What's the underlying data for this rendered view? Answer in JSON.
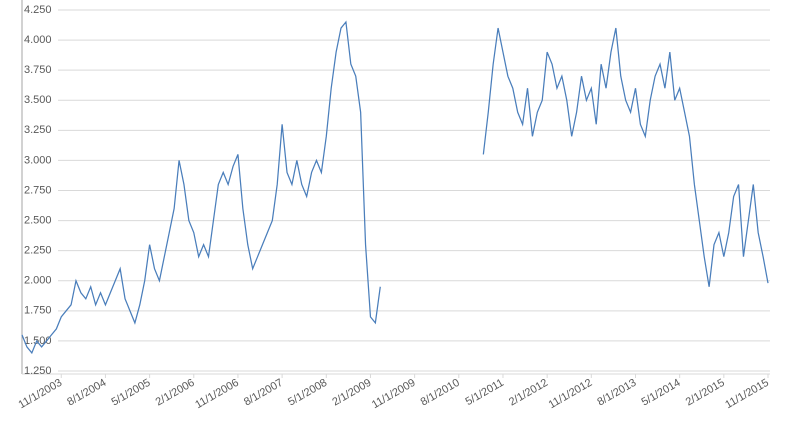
{
  "chart_data": {
    "type": "line",
    "x": [
      "3/1/2003",
      "4/1/2003",
      "5/1/2003",
      "6/1/2003",
      "7/1/2003",
      "8/1/2003",
      "9/1/2003",
      "10/1/2003",
      "11/1/2003",
      "12/1/2003",
      "1/1/2004",
      "2/1/2004",
      "3/1/2004",
      "4/1/2004",
      "5/1/2004",
      "6/1/2004",
      "7/1/2004",
      "8/1/2004",
      "9/1/2004",
      "10/1/2004",
      "11/1/2004",
      "12/1/2004",
      "1/1/2005",
      "2/1/2005",
      "3/1/2005",
      "4/1/2005",
      "5/1/2005",
      "6/1/2005",
      "7/1/2005",
      "8/1/2005",
      "9/1/2005",
      "10/1/2005",
      "11/1/2005",
      "12/1/2005",
      "1/1/2006",
      "2/1/2006",
      "3/1/2006",
      "4/1/2006",
      "5/1/2006",
      "6/1/2006",
      "7/1/2006",
      "8/1/2006",
      "9/1/2006",
      "10/1/2006",
      "11/1/2006",
      "12/1/2006",
      "1/1/2007",
      "2/1/2007",
      "3/1/2007",
      "4/1/2007",
      "5/1/2007",
      "6/1/2007",
      "7/1/2007",
      "8/1/2007",
      "9/1/2007",
      "10/1/2007",
      "11/1/2007",
      "12/1/2007",
      "1/1/2008",
      "2/1/2008",
      "3/1/2008",
      "4/1/2008",
      "5/1/2008",
      "6/1/2008",
      "7/1/2008",
      "8/1/2008",
      "9/1/2008",
      "10/1/2008",
      "11/1/2008",
      "12/1/2008",
      "1/1/2009",
      "2/1/2009",
      "3/1/2009",
      "4/1/2009",
      "5/1/2009",
      "6/1/2009",
      "7/1/2009",
      "8/1/2009",
      "9/1/2009",
      "10/1/2009",
      "11/1/2009",
      "12/1/2009",
      "1/1/2010",
      "2/1/2010",
      "3/1/2010",
      "4/1/2010",
      "5/1/2010",
      "6/1/2010",
      "7/1/2010",
      "8/1/2010",
      "9/1/2010",
      "10/1/2010",
      "11/1/2010",
      "12/1/2010",
      "1/1/2011",
      "2/1/2011",
      "3/1/2011",
      "4/1/2011",
      "5/1/2011",
      "6/1/2011",
      "7/1/2011",
      "8/1/2011",
      "9/1/2011",
      "10/1/2011",
      "11/1/2011",
      "12/1/2011",
      "1/1/2012",
      "2/1/2012",
      "3/1/2012",
      "4/1/2012",
      "5/1/2012",
      "6/1/2012",
      "7/1/2012",
      "8/1/2012",
      "9/1/2012",
      "10/1/2012",
      "11/1/2012",
      "12/1/2012",
      "1/1/2013",
      "2/1/2013",
      "3/1/2013",
      "4/1/2013",
      "5/1/2013",
      "6/1/2013",
      "7/1/2013",
      "8/1/2013",
      "9/1/2013",
      "10/1/2013",
      "11/1/2013",
      "12/1/2013",
      "1/1/2014",
      "2/1/2014",
      "3/1/2014",
      "4/1/2014",
      "5/1/2014",
      "6/1/2014",
      "7/1/2014",
      "8/1/2014",
      "9/1/2014",
      "10/1/2014",
      "11/1/2014",
      "12/1/2014",
      "1/1/2015",
      "2/1/2015",
      "3/1/2015",
      "4/1/2015",
      "5/1/2015",
      "6/1/2015",
      "7/1/2015",
      "8/1/2015",
      "9/1/2015",
      "10/1/2015",
      "11/1/2015"
    ],
    "series": [
      {
        "color": "#4a7ebb",
        "values": [
          1.55,
          1.45,
          1.4,
          1.5,
          1.45,
          1.5,
          1.55,
          1.6,
          1.7,
          1.75,
          1.8,
          2.0,
          1.9,
          1.85,
          1.95,
          1.8,
          1.9,
          1.8,
          1.9,
          2.0,
          2.1,
          1.85,
          1.75,
          1.65,
          1.8,
          2.0,
          2.3,
          2.1,
          2.0,
          2.2,
          2.4,
          2.6,
          3.0,
          2.8,
          2.5,
          2.4,
          2.2,
          2.3,
          2.2,
          2.5,
          2.8,
          2.9,
          2.8,
          2.95,
          3.05,
          2.6,
          2.3,
          2.1,
          2.2,
          2.3,
          2.4,
          2.5,
          2.8,
          3.3,
          2.9,
          2.8,
          3.0,
          2.8,
          2.7,
          2.9,
          3.0,
          2.9,
          3.2,
          3.6,
          3.9,
          4.1,
          4.15,
          3.8,
          3.7,
          3.4,
          2.3,
          1.7,
          1.65,
          1.95,
          null,
          null,
          null,
          null,
          null,
          null,
          null,
          null,
          null,
          null,
          null,
          null,
          null,
          null,
          null,
          null,
          null,
          null,
          null,
          null,
          3.05,
          3.4,
          3.8,
          4.1,
          3.9,
          3.7,
          3.6,
          3.4,
          3.3,
          3.6,
          3.2,
          3.4,
          3.5,
          3.9,
          3.8,
          3.6,
          3.7,
          3.5,
          3.2,
          3.4,
          3.7,
          3.5,
          3.6,
          3.3,
          3.8,
          3.6,
          3.9,
          4.1,
          3.7,
          3.5,
          3.4,
          3.6,
          3.3,
          3.2,
          3.5,
          3.7,
          3.8,
          3.6,
          3.9,
          3.5,
          3.6,
          3.4,
          3.2,
          2.8,
          2.5,
          2.2,
          1.95,
          2.3,
          2.4,
          2.2,
          2.4,
          2.7,
          2.8,
          2.2,
          2.5,
          2.8,
          2.4,
          2.2,
          1.98
        ]
      }
    ],
    "xlim": [
      "3/1/2003",
      "11/1/2015"
    ],
    "xticks": [
      "11/1/2003",
      "8/1/2004",
      "5/1/2005",
      "2/1/2006",
      "11/1/2006",
      "8/1/2007",
      "5/1/2008",
      "2/1/2009",
      "11/1/2009",
      "8/1/2010",
      "5/1/2011",
      "2/1/2012",
      "11/1/2012",
      "8/1/2013",
      "5/1/2014",
      "2/1/2015",
      "11/1/2015"
    ],
    "ylim": [
      1.25,
      4.25
    ],
    "yticks": [
      {
        "value": 1.25,
        "label": "1.250"
      },
      {
        "value": 1.5,
        "label": "1.500"
      },
      {
        "value": 1.75,
        "label": "1.750"
      },
      {
        "value": 2,
        "label": "2.000"
      },
      {
        "value": 2.25,
        "label": "2.250"
      },
      {
        "value": 2.5,
        "label": "2.500"
      },
      {
        "value": 2.75,
        "label": "2.750"
      },
      {
        "value": 3,
        "label": "3.000"
      },
      {
        "value": 3.25,
        "label": "3.250"
      },
      {
        "value": 3.5,
        "label": "3.500"
      },
      {
        "value": 3.75,
        "label": "3.750"
      },
      {
        "value": 4,
        "label": "4.000"
      },
      {
        "value": 4.25,
        "label": "4.250"
      }
    ],
    "grid": true
  }
}
